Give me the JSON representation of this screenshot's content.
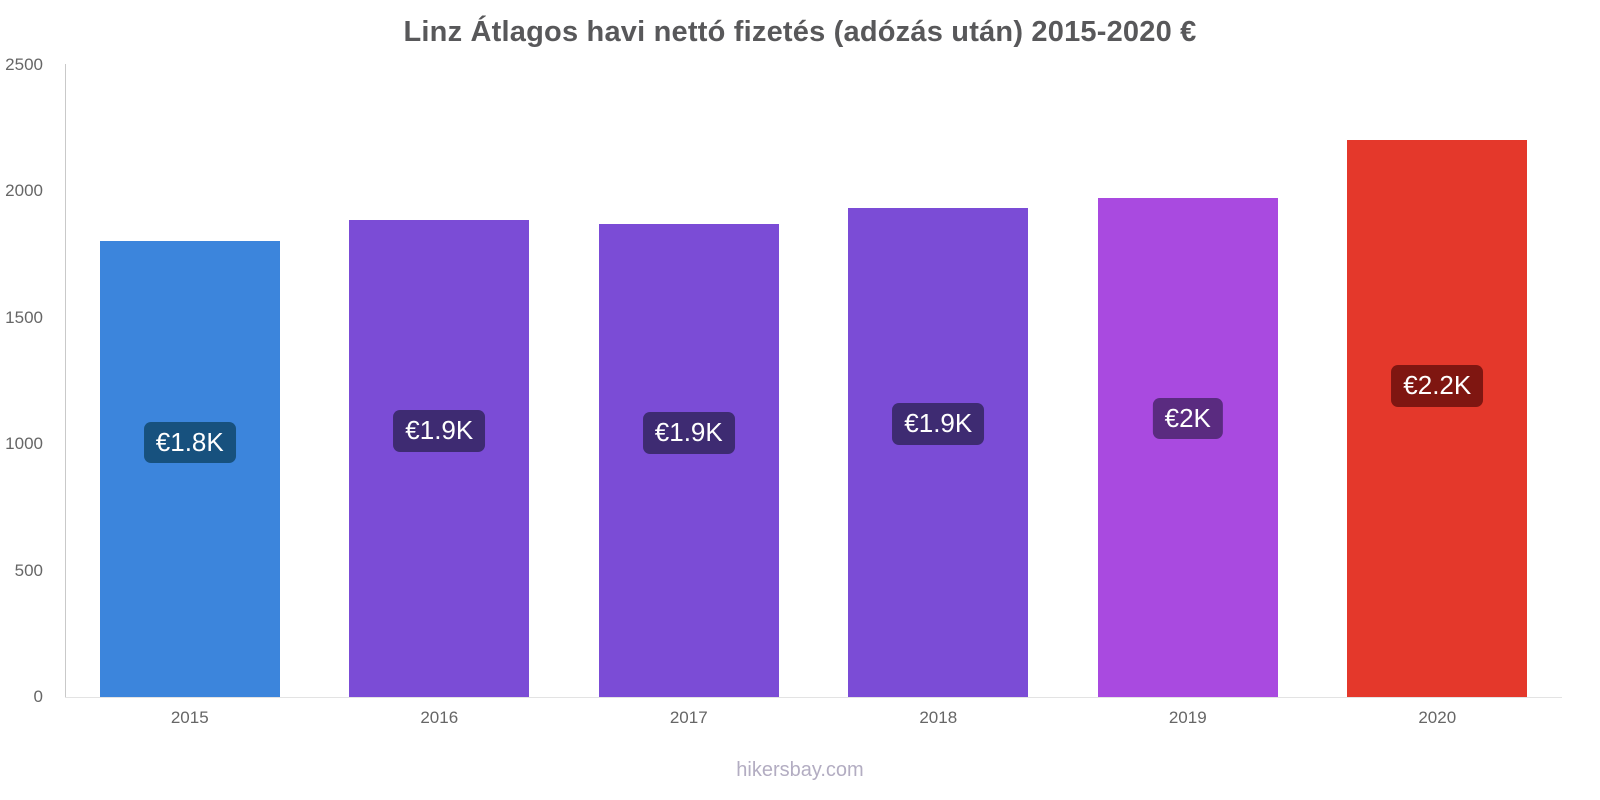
{
  "title": "Linz Átlagos havi nettó fizetés (adózás után) 2015-2020 €",
  "footer": "hikersbay.com",
  "chart_data": {
    "type": "bar",
    "title": "Linz Átlagos havi nettó fizetés (adózás után) 2015-2020 €",
    "categories": [
      "2015",
      "2016",
      "2017",
      "2018",
      "2019",
      "2020"
    ],
    "values": [
      1805,
      1885,
      1870,
      1935,
      1975,
      2205
    ],
    "data_labels": [
      "€1.8K",
      "€1.9K",
      "€1.9K",
      "€1.9K",
      "€2K",
      "€2.2K"
    ],
    "bar_colors": [
      "#3c85dc",
      "#7b4cd6",
      "#7b4cd6",
      "#7b4cd6",
      "#a94ae0",
      "#e4382b"
    ],
    "badge_colors": [
      "#17517e",
      "#3e2b72",
      "#3e2b72",
      "#3e2b72",
      "#5a2b80",
      "#7f1611"
    ],
    "xlabel": "",
    "ylabel": "",
    "ylim": [
      0,
      2500
    ],
    "yticks": [
      0,
      500,
      1000,
      1500,
      2000,
      2500
    ],
    "grid": false,
    "legend": false,
    "watermark": "hikersbay.com"
  }
}
